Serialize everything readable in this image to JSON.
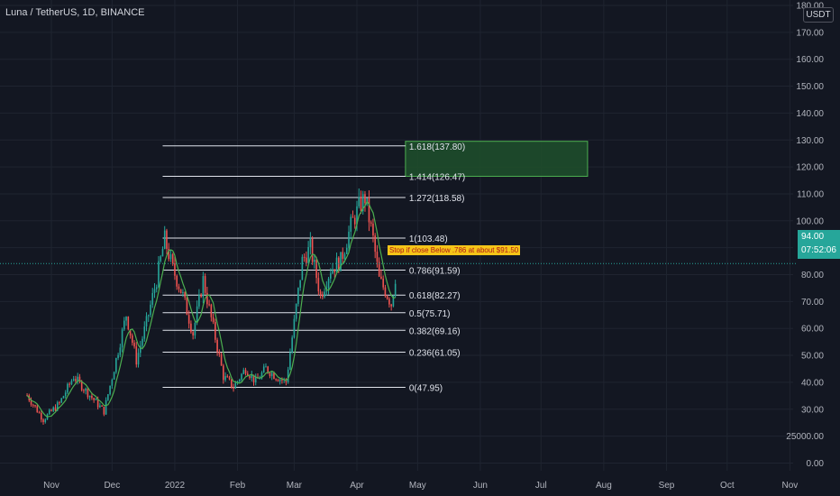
{
  "symbol": "Luna / TetherUS, 1D, BINANCE",
  "currency": "USDT",
  "last_price": "94.00",
  "countdown": "07:52:06",
  "note": "Stop if close Below .786 at about $91.50",
  "colors": {
    "background": "#131722",
    "up": "#26a69a",
    "down": "#ef5350",
    "ma_line": "#4caf50",
    "fib_line": "#e0e3eb",
    "target_zone": "#1e4d2b",
    "target_border": "#4caf50",
    "note_bg": "#f5c518",
    "note_text": "#b01818"
  },
  "chart_data": {
    "type": "candlestick",
    "x_axis_labels": [
      "Nov",
      "Dec",
      "2022",
      "Feb",
      "Mar",
      "Apr",
      "May",
      "Jun",
      "Jul",
      "Aug",
      "Sep",
      "Oct",
      "Nov"
    ],
    "y_axis_labels": [
      "180.00",
      "170.00",
      "160.00",
      "150.00",
      "140.00",
      "130.00",
      "120.00",
      "110.00",
      "100.00",
      "90.00",
      "80.00",
      "70.00",
      "60.00",
      "50.00",
      "40.00",
      "30.00",
      "25000.00",
      "0.00"
    ],
    "ylim": [
      30,
      180
    ],
    "grid": true,
    "fibonacci": [
      {
        "level": "1.618",
        "price": 137.8,
        "label": "1.618(137.80)"
      },
      {
        "level": "1.414",
        "price": 126.47,
        "label": "1.414(126.47)"
      },
      {
        "level": "1.272",
        "price": 118.58,
        "label": "1.272(118.58)"
      },
      {
        "level": "1",
        "price": 103.48,
        "label": "1(103.48)"
      },
      {
        "level": "0.786",
        "price": 91.59,
        "label": "0.786(91.59)"
      },
      {
        "level": "0.618",
        "price": 82.27,
        "label": "0.618(82.27)"
      },
      {
        "level": "0.5",
        "price": 75.71,
        "label": "0.5(75.71)"
      },
      {
        "level": "0.382",
        "price": 69.16,
        "label": "0.382(69.16)"
      },
      {
        "level": "0.236",
        "price": 61.05,
        "label": "0.236(61.05)"
      },
      {
        "level": "0",
        "price": 47.95,
        "label": "0(47.95)"
      }
    ],
    "target_zone": {
      "from_date": "2022-04-25",
      "to_date": "2022-07-24",
      "low": 126.47,
      "high": 139.5
    },
    "price_path": [
      [
        "2021-10-20",
        45
      ],
      [
        "2021-10-28",
        36
      ],
      [
        "2021-11-05",
        42
      ],
      [
        "2021-11-12",
        52
      ],
      [
        "2021-11-20",
        45
      ],
      [
        "2021-11-27",
        39
      ],
      [
        "2021-12-02",
        55
      ],
      [
        "2021-12-08",
        75
      ],
      [
        "2021-12-13",
        58
      ],
      [
        "2021-12-18",
        72
      ],
      [
        "2021-12-23",
        88
      ],
      [
        "2021-12-27",
        103
      ],
      [
        "2021-12-31",
        92
      ],
      [
        "2022-01-05",
        82
      ],
      [
        "2022-01-10",
        68
      ],
      [
        "2022-01-15",
        88
      ],
      [
        "2022-01-20",
        70
      ],
      [
        "2022-01-25",
        52
      ],
      [
        "2022-01-30",
        48
      ],
      [
        "2022-02-05",
        55
      ],
      [
        "2022-02-10",
        50
      ],
      [
        "2022-02-15",
        55
      ],
      [
        "2022-02-20",
        52
      ],
      [
        "2022-02-25",
        50
      ],
      [
        "2022-03-01",
        72
      ],
      [
        "2022-03-05",
        95
      ],
      [
        "2022-03-09",
        100
      ],
      [
        "2022-03-14",
        82
      ],
      [
        "2022-03-19",
        92
      ],
      [
        "2022-03-24",
        95
      ],
      [
        "2022-03-29",
        108
      ],
      [
        "2022-04-02",
        115
      ],
      [
        "2022-04-05",
        118.6
      ],
      [
        "2022-04-09",
        103
      ],
      [
        "2022-04-12",
        88
      ],
      [
        "2022-04-15",
        84
      ],
      [
        "2022-04-18",
        79
      ],
      [
        "2022-04-21",
        94
      ]
    ]
  }
}
